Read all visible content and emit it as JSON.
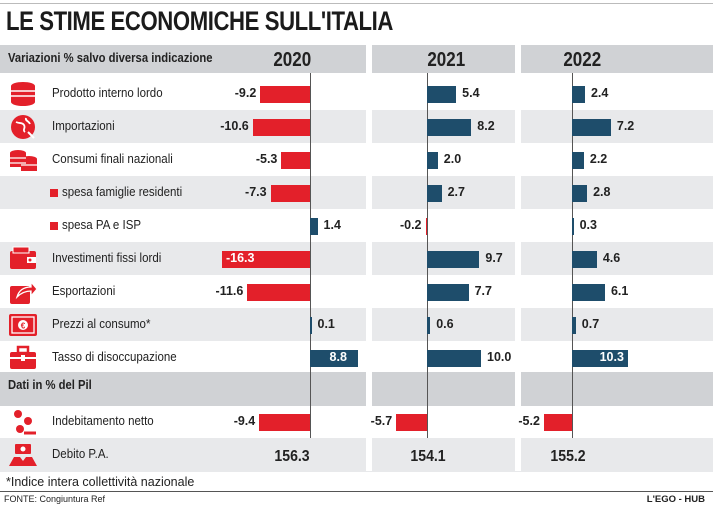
{
  "title": "LE STIME ECONOMICHE SULL'ITALIA",
  "header_label": "Variazioni % salvo diversa indicazione",
  "section2_label": "Dati in % del Pil",
  "footnote": "*Indice intera collettività nazionale",
  "source": "FONTE: Congiuntura Ref",
  "brand": "L'EGO - HUB",
  "colors": {
    "negative": "#e3202a",
    "positive": "#1e4d6b",
    "header": "#d0d2d5",
    "shade": "#e8e9eb"
  },
  "chart_data": {
    "type": "bar",
    "years": [
      "2020",
      "2021",
      "2022"
    ],
    "rows": [
      {
        "label": "Prodotto interno lordo",
        "icon": "coin-stack-icon",
        "values": [
          -9.2,
          5.4,
          2.4
        ],
        "display": [
          "-9.2",
          "5.4",
          "2.4"
        ]
      },
      {
        "label": "Importazioni",
        "icon": "globe-import-icon",
        "values": [
          -10.6,
          8.2,
          7.2
        ],
        "display": [
          "-10.6",
          "8.2",
          "7.2"
        ]
      },
      {
        "label": "Consumi finali nazionali",
        "icon": "coins-icon",
        "values": [
          -5.3,
          2.0,
          2.2
        ],
        "display": [
          "-5.3",
          "2.0",
          "2.2"
        ]
      },
      {
        "label": "spesa famiglie residenti",
        "sub": true,
        "values": [
          -7.3,
          2.7,
          2.8
        ],
        "display": [
          "-7.3",
          "2.7",
          "2.8"
        ]
      },
      {
        "label": "spesa PA e ISP",
        "sub": true,
        "values": [
          1.4,
          -0.2,
          0.3
        ],
        "display": [
          "1.4",
          "-0.2",
          "0.3"
        ]
      },
      {
        "label": "Investimenti fissi lordi",
        "icon": "wallet-icon",
        "values": [
          -16.3,
          9.7,
          4.6
        ],
        "display": [
          "-16.3",
          "9.7",
          "4.6"
        ]
      },
      {
        "label": "Esportazioni",
        "icon": "export-arrow-icon",
        "values": [
          -11.6,
          7.7,
          6.1
        ],
        "display": [
          "-11.6",
          "7.7",
          "6.1"
        ]
      },
      {
        "label": "Prezzi al consumo*",
        "icon": "banknote-icon",
        "values": [
          0.1,
          0.6,
          0.7
        ],
        "display": [
          "0.1",
          "0.6",
          "0.7"
        ]
      },
      {
        "label": "Tasso di disoccupazione",
        "icon": "briefcase-icon",
        "values": [
          8.8,
          10.0,
          10.3
        ],
        "display": [
          "8.8",
          "10.0",
          "10.3"
        ]
      }
    ],
    "pil_rows": [
      {
        "label": "Indebitamento netto",
        "icon": "falling-coins-icon",
        "values": [
          -9.4,
          -5.7,
          -5.2
        ],
        "display": [
          "-9.4",
          "-5.7",
          "-5.2"
        ]
      },
      {
        "label": "Debito P.A.",
        "icon": "hands-money-icon",
        "values": [
          156.3,
          154.1,
          155.2
        ],
        "display": [
          "156.3",
          "154.1",
          "155.2"
        ],
        "text_only": true
      }
    ]
  }
}
